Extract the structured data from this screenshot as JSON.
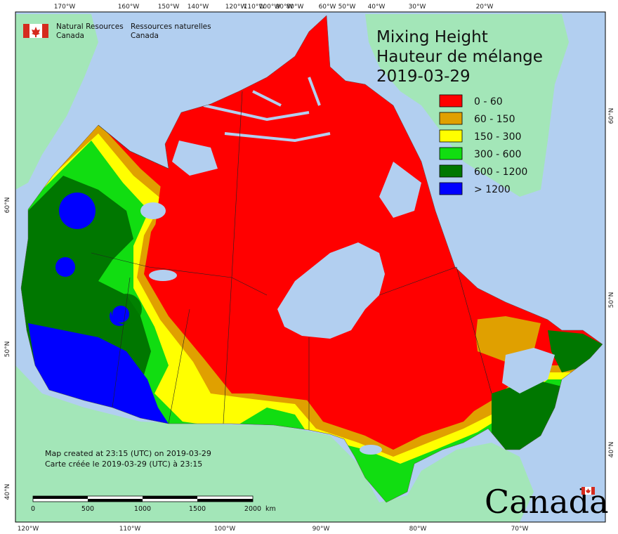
{
  "title": {
    "line1": "Mixing Height",
    "line2": "Hauteur de mélange",
    "date": "2019-03-29"
  },
  "org": {
    "en_line1": "Natural Resources",
    "en_line2": "Canada",
    "fr_line1": "Ressources naturelles",
    "fr_line2": "Canada"
  },
  "legend": [
    {
      "label": "0 - 60",
      "color": "#ff0000"
    },
    {
      "label": "60 - 150",
      "color": "#e0a000"
    },
    {
      "label": "150 - 300",
      "color": "#ffff00"
    },
    {
      "label": "300 - 600",
      "color": "#11dd11"
    },
    {
      "label": "600 - 1200",
      "color": "#007700"
    },
    {
      "label": "> 1200",
      "color": "#0000ff"
    }
  ],
  "created": {
    "en": "Map created at 23:15 (UTC) on 2019-03-29",
    "fr": "Carte créée le 2019-03-29 (UTC) à 23:15"
  },
  "scale": {
    "labels": [
      "0",
      "500",
      "1000",
      "1500",
      "2000"
    ],
    "unit": "km"
  },
  "wordmark": "Canada",
  "ticks": {
    "top": [
      "170°W",
      "160°W",
      "150°W",
      "140°W",
      "120°W",
      "110°W",
      "100°W",
      "90°W",
      "80°W",
      "60°W",
      "50°W",
      "40°W",
      "30°W",
      "20°W"
    ],
    "bottom": [
      "120°W",
      "110°W",
      "100°W",
      "90°W",
      "80°W",
      "70°W"
    ],
    "left": [
      "60°N",
      "50°N",
      "40°N"
    ],
    "right": [
      "60°N",
      "50°N",
      "40°N"
    ]
  },
  "colors": {
    "water": "#b2cff0",
    "land_foreign": "#a3e6b8",
    "frame": "#000000"
  }
}
